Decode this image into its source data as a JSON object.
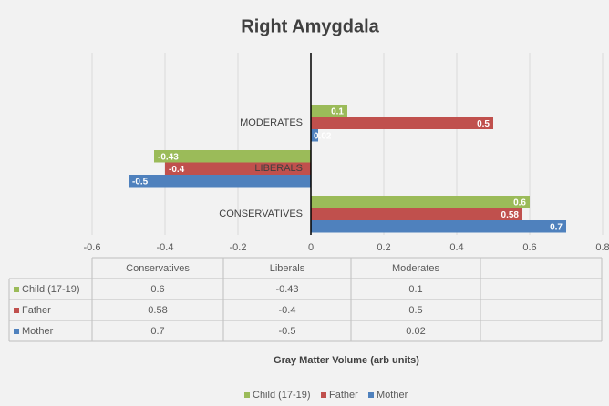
{
  "chart_data": {
    "type": "bar",
    "orientation": "horizontal",
    "title": "Right Amygdala",
    "x_label": "Gray Matter Volume (arb units)",
    "categories": [
      "Conservatives",
      "Liberals",
      "Moderates"
    ],
    "series": [
      {
        "name": "Child (17-19)",
        "color": "#9bbb59",
        "values": [
          0.6,
          -0.43,
          0.1
        ]
      },
      {
        "name": "Father",
        "color": "#c0504d",
        "values": [
          0.58,
          -0.4,
          0.5
        ]
      },
      {
        "name": "Mother",
        "color": "#4f81bd",
        "values": [
          0.7,
          -0.5,
          0.02
        ]
      }
    ],
    "xlim": [
      -0.6,
      0.8
    ],
    "xticks": [
      -0.6,
      -0.4,
      -0.2,
      0,
      0.2,
      0.4,
      0.6,
      0.8
    ],
    "grid": true,
    "legend": "bottom",
    "data_table": true
  }
}
